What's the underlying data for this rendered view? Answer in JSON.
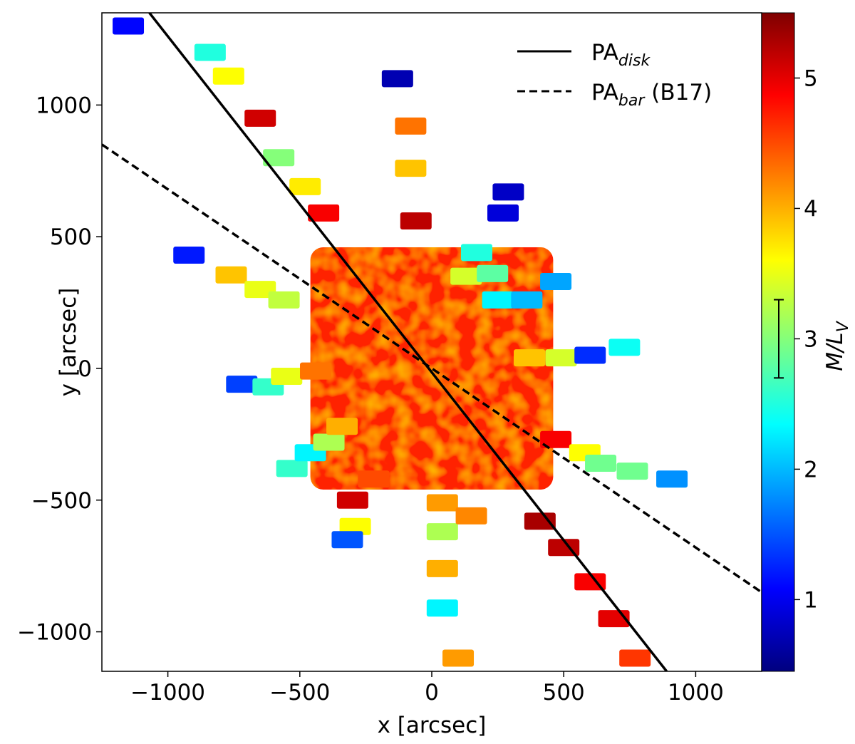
{
  "chart_data": {
    "type": "scatter",
    "xlabel": "x [arcsec]",
    "ylabel": "y [arcsec]",
    "xlim": [
      -1250,
      1250
    ],
    "ylim": [
      -1150,
      1350
    ],
    "xticks": [
      -1000,
      -500,
      0,
      500,
      1000
    ],
    "xtick_labels": [
      "−1000",
      "−500",
      "0",
      "500",
      "1000"
    ],
    "yticks": [
      -1000,
      -500,
      0,
      500,
      1000
    ],
    "ytick_labels": [
      "−1000",
      "−500",
      "0",
      "500",
      "1000"
    ],
    "grid": false,
    "colorbar": {
      "label_main": "M/L",
      "label_sub": "V",
      "range": [
        0.45,
        5.5
      ],
      "ticks": [
        1,
        2,
        3,
        4,
        5
      ],
      "tick_labels": [
        "1",
        "2",
        "3",
        "4",
        "5"
      ],
      "colormap": "jet",
      "error_bar": {
        "low": 2.7,
        "high": 3.3
      }
    },
    "legend": {
      "placement": "top-right",
      "entries": [
        {
          "label_main": "PA",
          "label_sub": "disk",
          "style": "solid",
          "color": "#000000"
        },
        {
          "label_main": "PA",
          "label_sub": "bar",
          "label_suffix": " (B17)",
          "style": "dashed",
          "color": "#000000"
        }
      ]
    },
    "lines": [
      {
        "name": "PA_disk",
        "style": "solid",
        "x1": -1070,
        "y1": 1350,
        "x2": 890,
        "y2": -1150
      },
      {
        "name": "PA_bar",
        "style": "dashed",
        "x1": -1250,
        "y1": 850,
        "x2": 1250,
        "y2": -850
      }
    ],
    "central_region": {
      "x": [
        -460,
        460
      ],
      "y": [
        -460,
        460
      ],
      "value": 4.7
    },
    "fields": [
      {
        "x": -1150,
        "y": 1300,
        "v": 1.1
      },
      {
        "x": -840,
        "y": 1200,
        "v": 2.5
      },
      {
        "x": -770,
        "y": 1110,
        "v": 3.6
      },
      {
        "x": -650,
        "y": 950,
        "v": 5.1
      },
      {
        "x": -580,
        "y": 800,
        "v": 3.0
      },
      {
        "x": -480,
        "y": 690,
        "v": 3.7
      },
      {
        "x": -410,
        "y": 590,
        "v": 4.9
      },
      {
        "x": -920,
        "y": 430,
        "v": 1.2
      },
      {
        "x": -760,
        "y": 355,
        "v": 3.9
      },
      {
        "x": -650,
        "y": 300,
        "v": 3.5
      },
      {
        "x": -560,
        "y": 260,
        "v": 3.3
      },
      {
        "x": -720,
        "y": -60,
        "v": 1.4
      },
      {
        "x": -620,
        "y": -70,
        "v": 2.6
      },
      {
        "x": -550,
        "y": -30,
        "v": 3.5
      },
      {
        "x": -440,
        "y": -10,
        "v": 4.3
      },
      {
        "x": -530,
        "y": -380,
        "v": 2.6
      },
      {
        "x": -460,
        "y": -320,
        "v": 2.3
      },
      {
        "x": -390,
        "y": -280,
        "v": 3.2
      },
      {
        "x": -340,
        "y": -220,
        "v": 4.0
      },
      {
        "x": -300,
        "y": -500,
        "v": 5.1
      },
      {
        "x": -290,
        "y": -600,
        "v": 3.6
      },
      {
        "x": -320,
        "y": -650,
        "v": 1.5
      },
      {
        "x": -220,
        "y": -420,
        "v": 4.5
      },
      {
        "x": -130,
        "y": 1100,
        "v": 0.7
      },
      {
        "x": -80,
        "y": 920,
        "v": 4.3
      },
      {
        "x": -80,
        "y": 760,
        "v": 3.9
      },
      {
        "x": 40,
        "y": -510,
        "v": 4.1
      },
      {
        "x": 40,
        "y": -620,
        "v": 3.2
      },
      {
        "x": 40,
        "y": -760,
        "v": 4.0
      },
      {
        "x": 40,
        "y": -910,
        "v": 2.3
      },
      {
        "x": 100,
        "y": -1100,
        "v": 4.1
      },
      {
        "x": 150,
        "y": -560,
        "v": 4.2
      },
      {
        "x": -60,
        "y": 560,
        "v": 5.2
      },
      {
        "x": 170,
        "y": 440,
        "v": 2.5
      },
      {
        "x": 130,
        "y": 350,
        "v": 3.4
      },
      {
        "x": 230,
        "y": 360,
        "v": 2.8
      },
      {
        "x": 250,
        "y": 260,
        "v": 2.3
      },
      {
        "x": 360,
        "y": 260,
        "v": 2.0
      },
      {
        "x": 470,
        "y": 330,
        "v": 1.9
      },
      {
        "x": 290,
        "y": 670,
        "v": 0.8
      },
      {
        "x": 270,
        "y": 590,
        "v": 0.9
      },
      {
        "x": 370,
        "y": 40,
        "v": 3.9
      },
      {
        "x": 490,
        "y": 40,
        "v": 3.4
      },
      {
        "x": 600,
        "y": 50,
        "v": 1.3
      },
      {
        "x": 730,
        "y": 80,
        "v": 2.4
      },
      {
        "x": 470,
        "y": -270,
        "v": 4.9
      },
      {
        "x": 580,
        "y": -320,
        "v": 3.6
      },
      {
        "x": 640,
        "y": -360,
        "v": 2.9
      },
      {
        "x": 760,
        "y": -390,
        "v": 2.9
      },
      {
        "x": 910,
        "y": -420,
        "v": 1.8
      },
      {
        "x": 410,
        "y": -580,
        "v": 5.3
      },
      {
        "x": 500,
        "y": -680,
        "v": 5.2
      },
      {
        "x": 600,
        "y": -810,
        "v": 4.9
      },
      {
        "x": 690,
        "y": -950,
        "v": 5.0
      },
      {
        "x": 770,
        "y": -1100,
        "v": 4.6
      }
    ]
  }
}
